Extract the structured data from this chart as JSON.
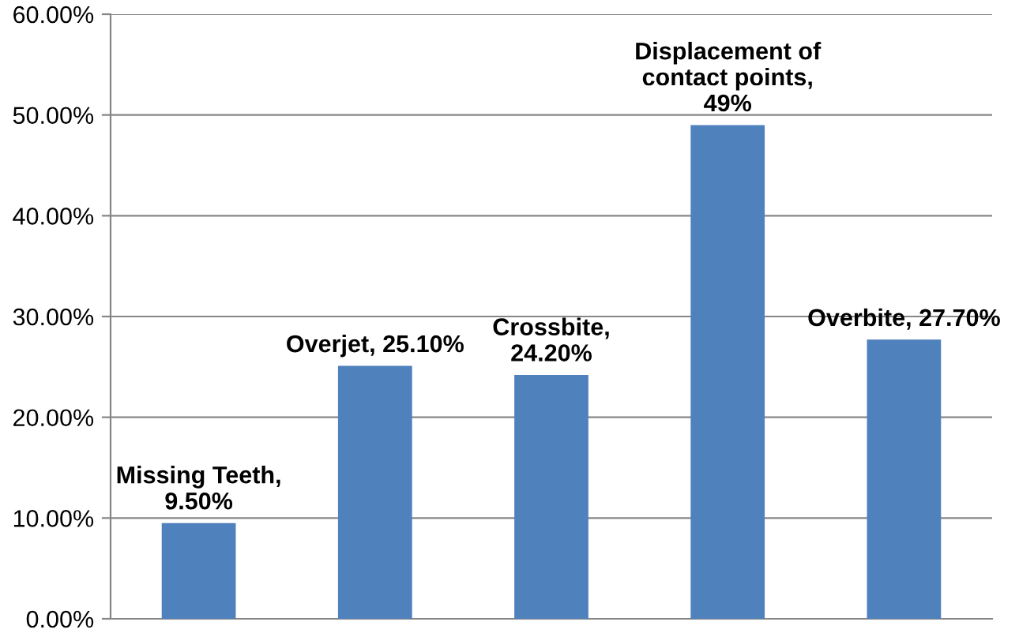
{
  "chart_data": {
    "type": "bar",
    "categories": [
      null,
      null,
      null,
      null,
      null
    ],
    "values": [
      9.5,
      25.1,
      24.2,
      49,
      27.7
    ],
    "color": "#4f81bd",
    "value_labels": [
      "Missing Teeth,\n9.50%",
      "Overjet, 25.10%",
      "Crossbite,\n24.20%",
      "Displacement of\ncontact points,\n49%",
      "Overbite, 27.70%"
    ],
    "ylim": [
      0,
      60
    ],
    "yticks": [
      {
        "value": 0,
        "label": "0.00%"
      },
      {
        "value": 10,
        "label": "10.00%"
      },
      {
        "value": 20,
        "label": "20.00%"
      },
      {
        "value": 30,
        "label": "30.00%"
      },
      {
        "value": 40,
        "label": "40.00%"
      },
      {
        "value": 50,
        "label": "50.00%"
      },
      {
        "value": 60,
        "label": "60.00%"
      }
    ],
    "grid": "y",
    "legend": false
  }
}
